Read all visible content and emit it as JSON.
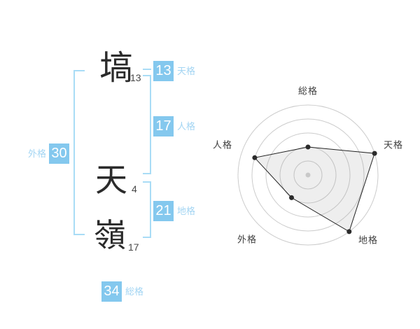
{
  "colors": {
    "badge_bg": "#84c8ee",
    "label_blue": "#a3d5f3",
    "bracket_blue": "#a9dcf6",
    "radar_line": "#222222",
    "radar_ring": "#cccccc",
    "radar_fill": "rgba(150,150,150,0.16)"
  },
  "name": {
    "chars": [
      {
        "char": "塙",
        "strokes": "13"
      },
      {
        "char": "天",
        "strokes": "4"
      },
      {
        "char": "嶺",
        "strokes": "17"
      }
    ]
  },
  "categories": {
    "tenkaku": {
      "label": "天格",
      "value": "13"
    },
    "jinkaku": {
      "label": "人格",
      "value": "17"
    },
    "chikaku": {
      "label": "地格",
      "value": "21"
    },
    "gaikaku": {
      "label": "外格",
      "value": "30"
    },
    "soukaku": {
      "label": "総格",
      "value": "34"
    }
  },
  "chart_data": {
    "type": "radar",
    "axes": [
      "総格",
      "天格",
      "地格",
      "外格",
      "人格"
    ],
    "values": [
      2,
      5,
      5,
      2,
      4
    ],
    "scale_max": 5,
    "rings": 5,
    "grid": "circular",
    "legend": "none",
    "start_angle_deg": 90,
    "direction": "clockwise"
  }
}
